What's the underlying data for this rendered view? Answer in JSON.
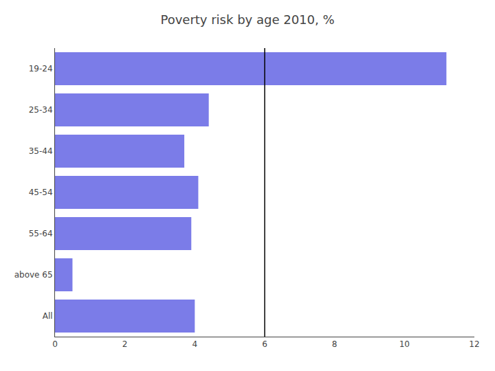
{
  "chart_data": {
    "type": "bar",
    "orientation": "horizontal",
    "title": "Poverty risk by age 2010, %",
    "categories": [
      "19-24",
      "25-34",
      "35-44",
      "45-54",
      "55-64",
      "above 65",
      "All"
    ],
    "values": [
      11.2,
      4.4,
      3.7,
      4.1,
      3.9,
      0.5,
      4.0
    ],
    "color": "#7B7CE8",
    "xlim": [
      0,
      12
    ],
    "xticks": [
      0,
      2,
      4,
      6,
      8,
      10,
      12
    ],
    "vline": {
      "x": 6,
      "color": "black"
    },
    "grid": false
  }
}
